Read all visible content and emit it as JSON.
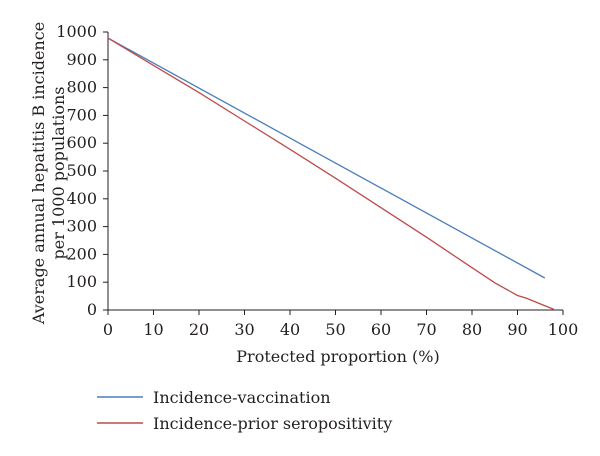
{
  "chart_data": {
    "type": "line",
    "xlabel": "Protected proportion (%)",
    "ylabel_lines": [
      "Average annual hepatitis B incidence",
      "per 1000 populations"
    ],
    "xlim": [
      0,
      100
    ],
    "ylim": [
      0,
      1000
    ],
    "x_ticks": [
      0,
      10,
      20,
      30,
      40,
      50,
      60,
      70,
      80,
      90,
      100
    ],
    "y_ticks": [
      0,
      100,
      200,
      300,
      400,
      500,
      600,
      700,
      800,
      900,
      1000
    ],
    "grid": false,
    "legend_position": "bottom-left",
    "series": [
      {
        "name": "Incidence-vaccination",
        "color": "#4a7ebb",
        "x": [
          0,
          96
        ],
        "y": [
          978,
          115
        ]
      },
      {
        "name": "Incidence-prior seropositivity",
        "color": "#be4b48",
        "x": [
          0,
          10,
          20,
          30,
          40,
          50,
          60,
          70,
          80,
          85,
          90,
          92,
          95,
          98
        ],
        "y": [
          978,
          880,
          782,
          680,
          578,
          474,
          368,
          262,
          152,
          98,
          52,
          42,
          22,
          2
        ]
      }
    ]
  }
}
